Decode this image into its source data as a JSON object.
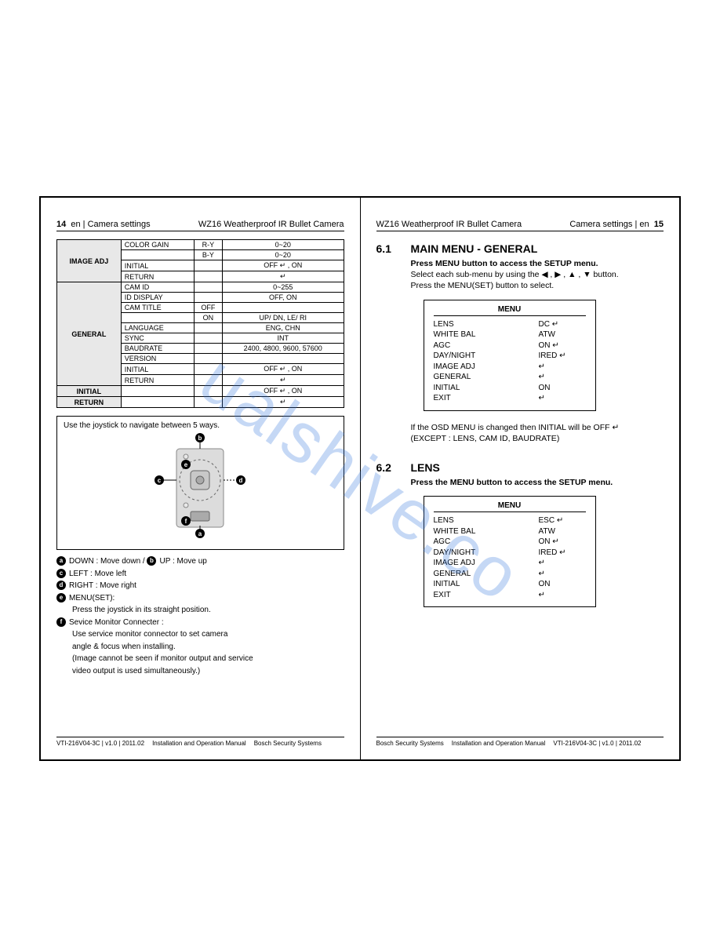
{
  "watermark": "ualshive.co",
  "left": {
    "header": {
      "page_num": "14",
      "section": "en | Camera settings",
      "product": "WZ16 Weatherproof IR Bullet Camera"
    },
    "table": {
      "groups": [
        {
          "name": "IMAGE ADJ",
          "rows": [
            {
              "sub": "COLOR GAIN",
              "mid": "R-Y",
              "val": "0~20"
            },
            {
              "sub": "",
              "mid": "B-Y",
              "val": "0~20"
            },
            {
              "sub": "INITIAL",
              "mid": "",
              "val": "OFF ↵ , ON"
            },
            {
              "sub": "RETURN",
              "mid": "",
              "val": "↵"
            }
          ]
        },
        {
          "name": "GENERAL",
          "rows": [
            {
              "sub": "CAM ID",
              "mid": "",
              "val": "0~255"
            },
            {
              "sub": "ID DISPLAY",
              "mid": "",
              "val": "OFF, ON"
            },
            {
              "sub": "CAM TITLE",
              "mid": "OFF",
              "val": ""
            },
            {
              "sub": "",
              "mid": "ON",
              "val": "UP/ DN, LE/ RI"
            },
            {
              "sub": "LANGUAGE",
              "mid": "",
              "val": "ENG, CHN"
            },
            {
              "sub": "SYNC",
              "mid": "",
              "val": "INT"
            },
            {
              "sub": "BAUDRATE",
              "mid": "",
              "val": "2400, 4800, 9600, 57600"
            },
            {
              "sub": "VERSION",
              "mid": "",
              "val": ""
            },
            {
              "sub": "INITIAL",
              "mid": "",
              "val": "OFF ↵ , ON"
            },
            {
              "sub": "RETURN",
              "mid": "",
              "val": "↵"
            }
          ]
        },
        {
          "name": "INITIAL",
          "rows": [
            {
              "sub": "",
              "mid": "",
              "val": "OFF ↵ , ON"
            }
          ]
        },
        {
          "name": "RETURN",
          "rows": [
            {
              "sub": "",
              "mid": "",
              "val": "↵"
            }
          ]
        }
      ]
    },
    "joystick": {
      "title": "Use the joystick to navigate between 5 ways.",
      "labels": {
        "a": "a",
        "b": "b",
        "c": "c",
        "d": "d",
        "e": "e",
        "f": "f"
      },
      "legend": [
        {
          "k": "a",
          "t": "DOWN : Move down  / ",
          "k2": "b",
          "t2": "UP : Move up"
        },
        {
          "k": "c",
          "t": "LEFT : Move left"
        },
        {
          "k": "d",
          "t": "RIGHT : Move right"
        },
        {
          "k": "e",
          "t": "MENU(SET):"
        },
        {
          "indent": "Press the joystick in its straight position."
        },
        {
          "k": "f",
          "t": "Sevice Monitor Connecter :"
        },
        {
          "indent": "Use service monitor connector to set camera"
        },
        {
          "indent": "angle & focus when installing."
        },
        {
          "indent": "(Image cannot be seen if monitor output and service"
        },
        {
          "indent": " video output is used simultaneously.)"
        }
      ]
    },
    "footer": {
      "a": "VTI-216V04-3C | v1.0 | 2011.02",
      "b": "Installation and Operation Manual",
      "c": "Bosch Security Systems"
    }
  },
  "right": {
    "header": {
      "product": "WZ16 Weatherproof IR Bullet Camera",
      "section": "Camera settings | en",
      "page_num": "15"
    },
    "s61": {
      "num": "6.1",
      "title": "MAIN MENU - GENERAL",
      "line1": "Press MENU button to access the SETUP menu.",
      "line2a": "Select each sub-menu by using the ",
      "line2b": " button.",
      "arrows": "◀ , ▶ , ▲ , ▼",
      "line3": "Press the MENU(SET) button to select."
    },
    "menu1": {
      "title": "MENU",
      "rows": [
        {
          "k": "LENS",
          "v": "DC  ↵"
        },
        {
          "k": "WHITE BAL",
          "v": "ATW"
        },
        {
          "k": "AGC",
          "v": "ON  ↵"
        },
        {
          "k": "DAY/NIGHT",
          "v": "IRED ↵"
        },
        {
          "k": "IMAGE ADJ",
          "v": "↵"
        },
        {
          "k": "GENERAL",
          "v": "↵"
        },
        {
          "k": "INITIAL",
          "v": "ON"
        },
        {
          "k": "EXIT",
          "v": "↵"
        }
      ]
    },
    "note1a": "If the OSD MENU is changed then INITIAL will be OFF ↵",
    "note1b": "(EXCEPT : LENS, CAM ID, BAUDRATE)",
    "s62": {
      "num": "6.2",
      "title": "LENS",
      "line1": "Press the MENU button to access the SETUP menu."
    },
    "menu2": {
      "title": "MENU",
      "rows": [
        {
          "k": "LENS",
          "v": "ESC ↵"
        },
        {
          "k": "WHITE BAL",
          "v": "ATW"
        },
        {
          "k": "AGC",
          "v": "ON  ↵"
        },
        {
          "k": "DAY/NIGHT",
          "v": "IRED ↵"
        },
        {
          "k": "IMAGE ADJ",
          "v": "↵"
        },
        {
          "k": "GENERAL",
          "v": "↵"
        },
        {
          "k": "INITIAL",
          "v": "ON"
        },
        {
          "k": "EXIT",
          "v": "↵"
        }
      ]
    },
    "footer": {
      "a": "Bosch Security Systems",
      "b": "Installation and Operation Manual",
      "c": "VTI-216V04-3C | v1.0 | 2011.02"
    }
  }
}
